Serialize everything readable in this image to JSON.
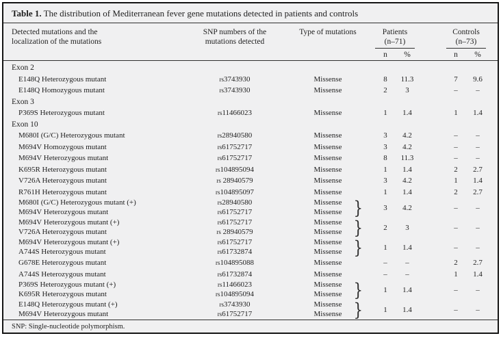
{
  "title": {
    "label": "Table 1.",
    "text": "The distribution of Mediterranean fever gene mutations detected in patients and controls"
  },
  "header": {
    "mutations_col_lines": [
      "Detected mutations and the",
      "localization of the mutations"
    ],
    "snp_col_lines": [
      "SNP numbers of the",
      "mutations detected"
    ],
    "type_col": "Type of mutations",
    "patients": {
      "label": "Patients",
      "count": "(n–71)",
      "n": "n",
      "pct": "%"
    },
    "controls": {
      "label": "Controls",
      "count": "(n–73)",
      "n": "n",
      "pct": "%"
    }
  },
  "sections": [
    {
      "name": "Exon 2",
      "rows": [
        {
          "mutations": [
            "E148Q Heterozygous mutant"
          ],
          "snps": [
            "rs3743930"
          ],
          "types": [
            "Missense"
          ],
          "patients_n": "8",
          "patients_pct": "11.3",
          "controls_n": "7",
          "controls_pct": "9.6"
        },
        {
          "mutations": [
            "E148Q Homozygous mutant"
          ],
          "snps": [
            "rs3743930"
          ],
          "types": [
            "Missense"
          ],
          "patients_n": "2",
          "patients_pct": "3",
          "controls_n": "–",
          "controls_pct": "–"
        }
      ]
    },
    {
      "name": "Exon 3",
      "rows": [
        {
          "mutations": [
            "P369S Heterozygous mutant"
          ],
          "snps": [
            "rs11466023"
          ],
          "types": [
            "Missense"
          ],
          "patients_n": "1",
          "patients_pct": "1.4",
          "controls_n": "1",
          "controls_pct": "1.4"
        }
      ]
    },
    {
      "name": "Exon 10",
      "rows": [
        {
          "mutations": [
            "M680I (G/C) Heterozygous mutant"
          ],
          "snps": [
            "rs28940580"
          ],
          "types": [
            "Missense"
          ],
          "patients_n": "3",
          "patients_pct": "4.2",
          "controls_n": "–",
          "controls_pct": "–"
        },
        {
          "mutations": [
            "M694V Homozygous mutant"
          ],
          "snps": [
            "rs61752717"
          ],
          "types": [
            "Missense"
          ],
          "patients_n": "3",
          "patients_pct": "4.2",
          "controls_n": "–",
          "controls_pct": "–"
        },
        {
          "mutations": [
            "M694V Heterozygous mutant"
          ],
          "snps": [
            "rs61752717"
          ],
          "types": [
            "Missense"
          ],
          "patients_n": "8",
          "patients_pct": "11.3",
          "controls_n": "–",
          "controls_pct": "–"
        },
        {
          "mutations": [
            "K695R Heterozygous mutant"
          ],
          "snps": [
            "rs104895094"
          ],
          "types": [
            "Missense"
          ],
          "patients_n": "1",
          "patients_pct": "1.4",
          "controls_n": "2",
          "controls_pct": "2.7"
        },
        {
          "mutations": [
            "V726A Heterozygous mutant"
          ],
          "snps": [
            "rs 28940579"
          ],
          "types": [
            "Missense"
          ],
          "patients_n": "3",
          "patients_pct": "4.2",
          "controls_n": "1",
          "controls_pct": "1.4"
        },
        {
          "mutations": [
            "R761H Heterozygous mutant"
          ],
          "snps": [
            "rs104895097"
          ],
          "types": [
            "Missense"
          ],
          "patients_n": "1",
          "patients_pct": "1.4",
          "controls_n": "2",
          "controls_pct": "2.7"
        },
        {
          "mutations": [
            "M680I (G/C) Heterozygous mutant (+)",
            "M694V Heterozygous mutant"
          ],
          "snps": [
            "rs28940580",
            "rs61752717"
          ],
          "types": [
            "Missense",
            "Missense"
          ],
          "patients_n": "3",
          "patients_pct": "4.2",
          "controls_n": "–",
          "controls_pct": "–"
        },
        {
          "mutations": [
            "M694V Heterozygous mutant (+)",
            "V726A Heterozygous mutant"
          ],
          "snps": [
            "rs61752717",
            "rs 28940579"
          ],
          "types": [
            "Missense",
            "Missense"
          ],
          "patients_n": "2",
          "patients_pct": "3",
          "controls_n": "–",
          "controls_pct": "–"
        },
        {
          "mutations": [
            "M694V Heterozygous mutant (+)",
            "A744S Heterozygous mutant"
          ],
          "snps": [
            "rs61752717",
            "rs61732874"
          ],
          "types": [
            "Missense",
            "Missense"
          ],
          "patients_n": "1",
          "patients_pct": "1.4",
          "controls_n": "–",
          "controls_pct": "–"
        },
        {
          "mutations": [
            "G678E Heterozygous mutant"
          ],
          "snps": [
            "rs104895088"
          ],
          "types": [
            "Missense"
          ],
          "patients_n": "–",
          "patients_pct": "–",
          "controls_n": "2",
          "controls_pct": "2.7"
        },
        {
          "mutations": [
            "A744S Heterozygous mutant"
          ],
          "snps": [
            "rs61732874"
          ],
          "types": [
            "Missense"
          ],
          "patients_n": "–",
          "patients_pct": "–",
          "controls_n": "1",
          "controls_pct": "1.4"
        },
        {
          "mutations": [
            "P369S Heterozygous mutant (+)",
            "K695R Heterozygous mutant"
          ],
          "snps": [
            "rs11466023",
            "rs104895094"
          ],
          "types": [
            "Missense",
            "Missense"
          ],
          "patients_n": "1",
          "patients_pct": "1.4",
          "controls_n": "–",
          "controls_pct": "–"
        },
        {
          "mutations": [
            "E148Q Heterozygous mutant (+)",
            "M694V Heterozygous mutant"
          ],
          "snps": [
            "rs3743930",
            "rs61752717"
          ],
          "types": [
            "Missense",
            "Missense"
          ],
          "patients_n": "1",
          "patients_pct": "1.4",
          "controls_n": "–",
          "controls_pct": "–"
        }
      ]
    }
  ],
  "footnote": "SNP: Single-nucleotide polymorphism."
}
